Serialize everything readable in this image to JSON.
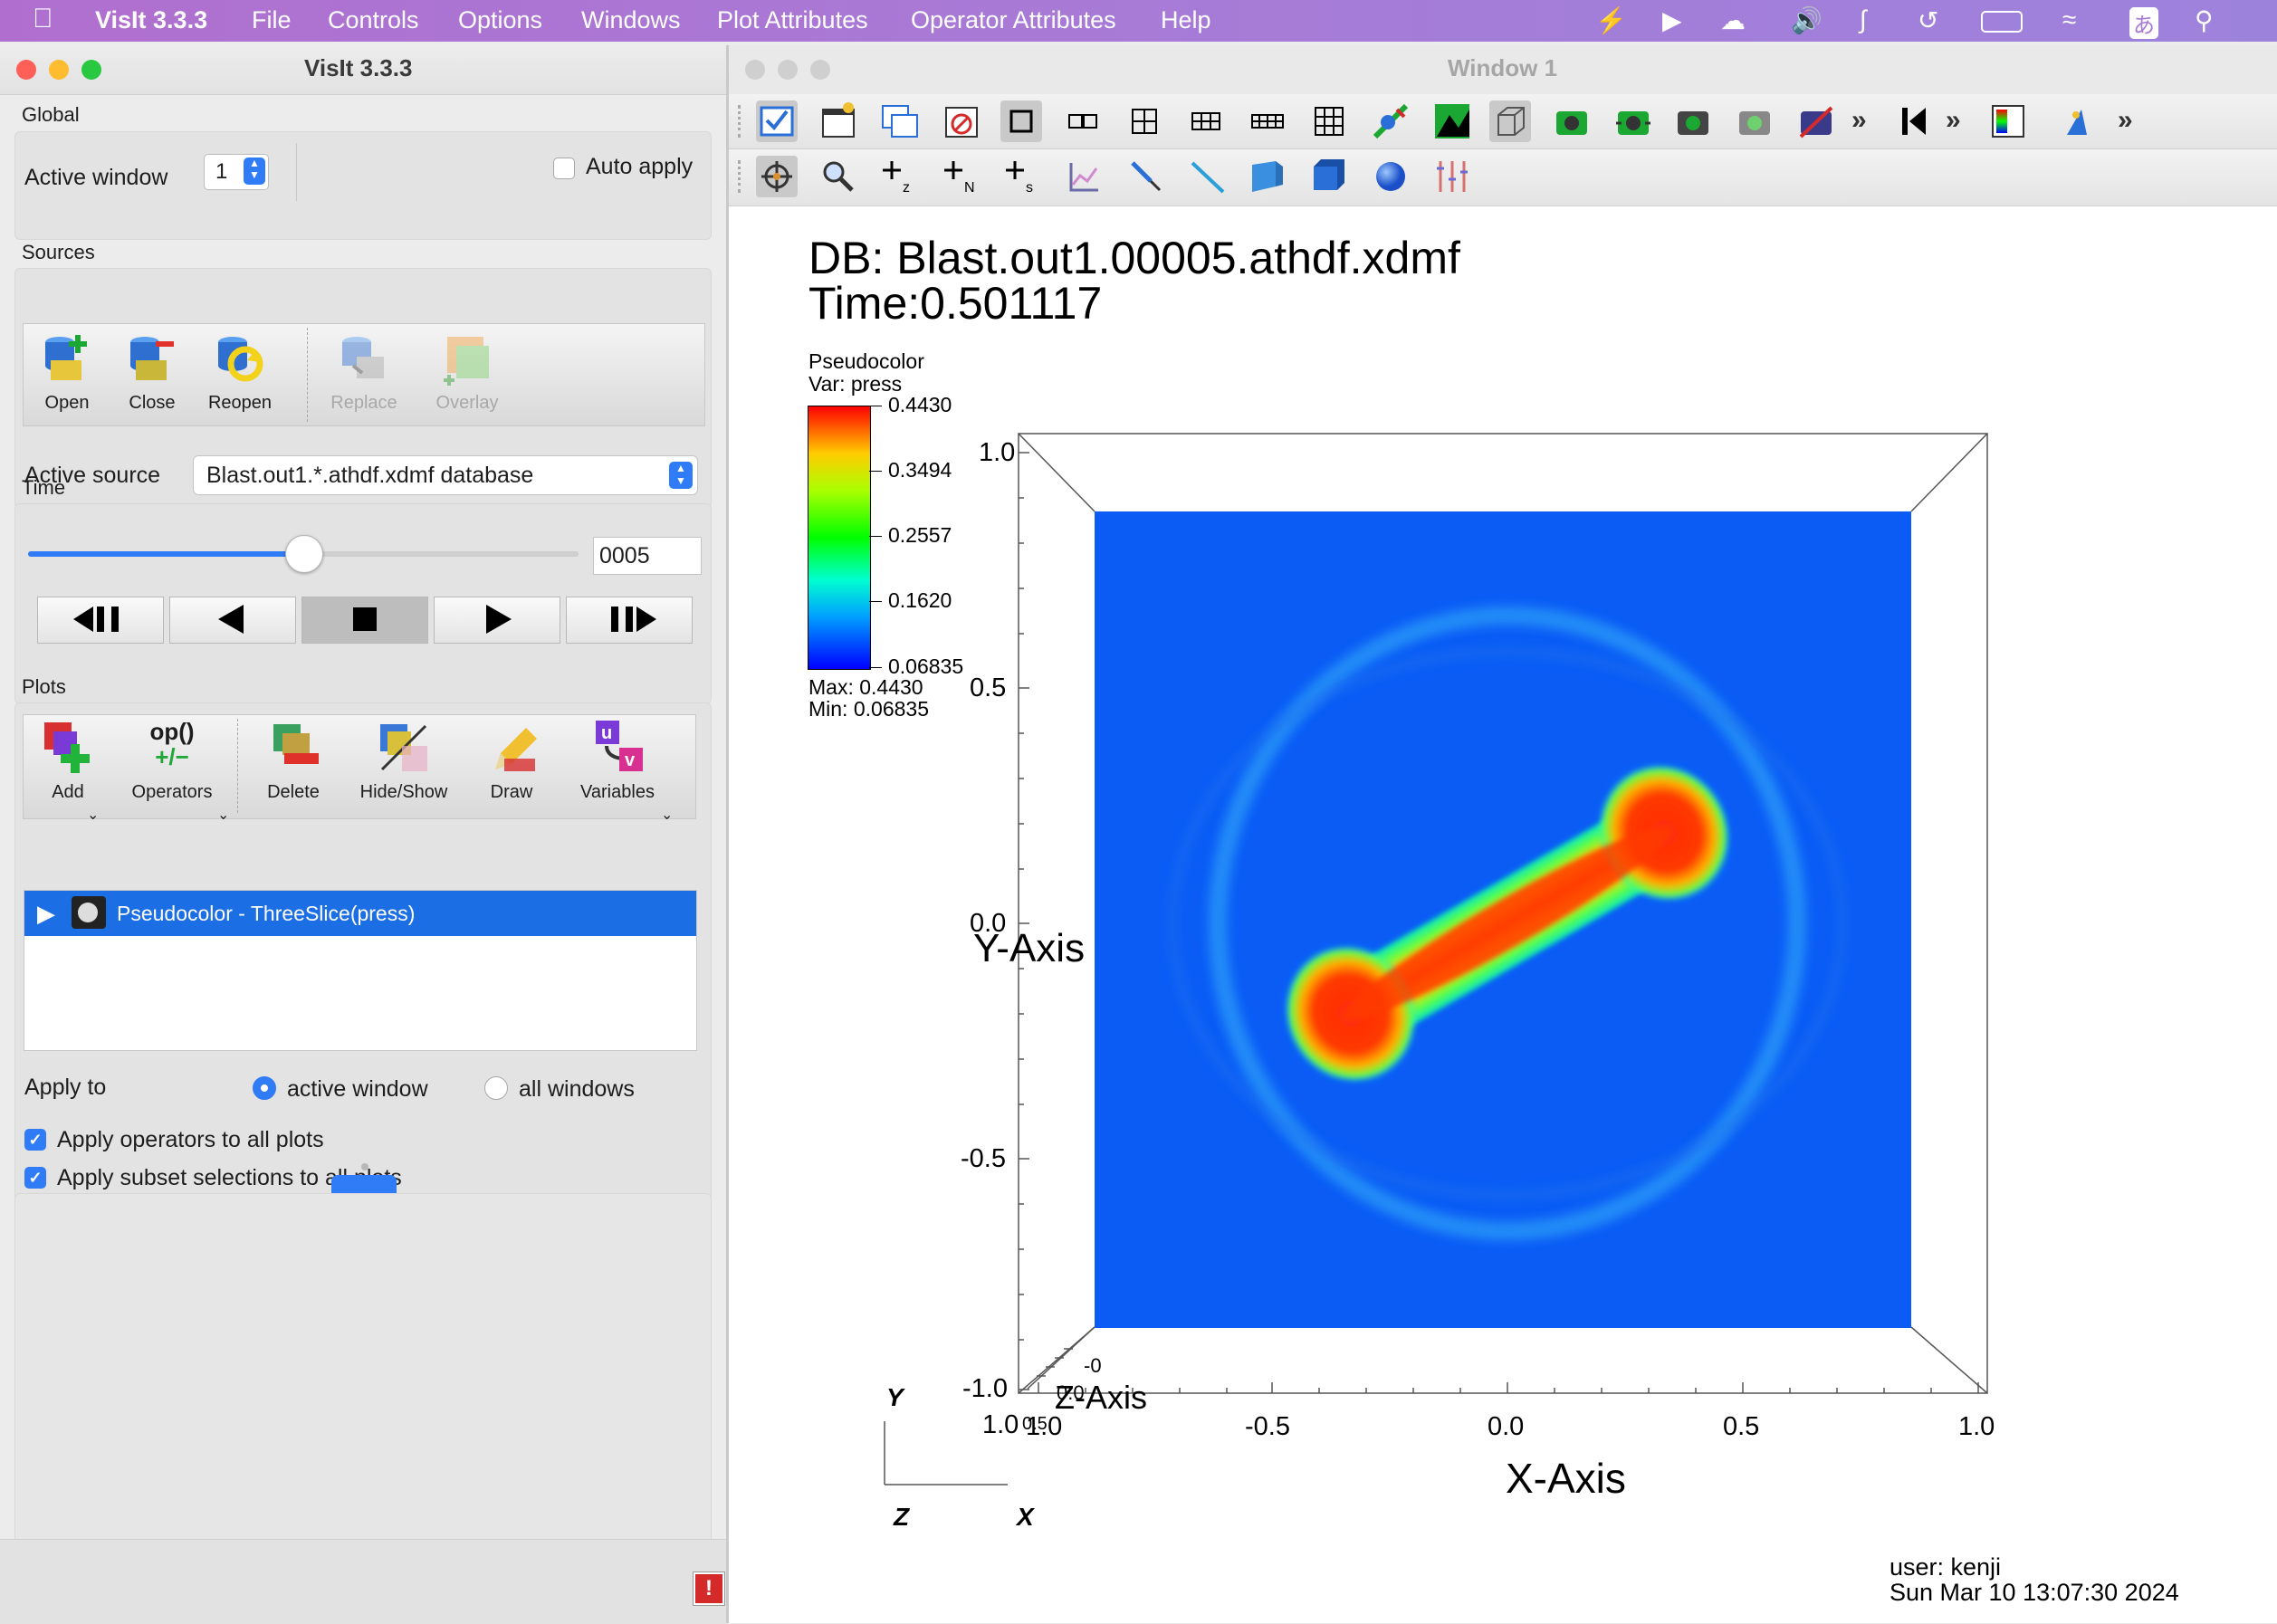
{
  "menubar": {
    "app_name": "VisIt 3.3.3",
    "items": [
      "File",
      "Controls",
      "Options",
      "Windows",
      "Plot Attributes",
      "Operator Attributes",
      "Help"
    ],
    "status_icons": [
      "cat-icon",
      "play-circle-icon",
      "cloud-icon",
      "volume-icon",
      "bluetooth-icon",
      "time-machine-icon",
      "battery-icon",
      "wifi-icon",
      "input-method-icon",
      "spotlight-icon"
    ],
    "input_method_glyph": "あ"
  },
  "control_window": {
    "title": "VisIt 3.3.3",
    "global": {
      "label": "Global",
      "active_window_label": "Active window",
      "active_window_value": "1",
      "auto_apply_label": "Auto apply",
      "auto_apply_checked": false
    },
    "sources": {
      "label": "Sources",
      "buttons": {
        "open": "Open",
        "close": "Close",
        "reopen": "Reopen",
        "replace": "Replace",
        "overlay": "Overlay"
      },
      "active_source_label": "Active source",
      "active_source_value": "Blast.out1.*.athdf.xdmf database"
    },
    "time": {
      "label": "Time",
      "slider_fraction": 0.5,
      "state_value": "0005"
    },
    "plots": {
      "label": "Plots",
      "buttons": {
        "add": "Add",
        "operators": "Operators",
        "delete": "Delete",
        "hide_show": "Hide/Show",
        "draw": "Draw",
        "variables": "Variables"
      },
      "operators_icon_text": "op()",
      "operators_icon_text2": "+/−",
      "list": [
        {
          "label": "Pseudocolor - ThreeSlice(press)",
          "selected": true
        }
      ],
      "apply_to_label": "Apply to",
      "apply_active_window": "active window",
      "apply_all_windows": "all windows",
      "apply_operators_label": "Apply operators to all plots",
      "apply_subset_label": "Apply subset selections to all plots"
    }
  },
  "viewer_window": {
    "title": "Window 1",
    "plot": {
      "db_line": "DB: Blast.out1.00005.athdf.xdmf",
      "time_line": "Time:0.501117",
      "legend_title": "Pseudocolor",
      "legend_var": "Var: press",
      "legend_ticks": [
        "0.4430",
        "0.3494",
        "0.2557",
        "0.1620",
        "0.06835"
      ],
      "legend_max": "Max:  0.4430",
      "legend_min": "Min:  0.06835",
      "y_ticks": [
        "1.0",
        "0.5",
        "0.0",
        "-0.5",
        "-1.0"
      ],
      "x_ticks": [
        "1.0",
        "1.0",
        "-0.5",
        "0.0",
        "0.5",
        "1.0"
      ],
      "x_axis_label": "X-Axis",
      "y_axis_label": "Y-Axis",
      "z_axis_label": "Z-Axis",
      "z_tick_a": "-0",
      "z_tick_b": "0.0",
      "z_tick_c": "0.5",
      "triad_y": "Y",
      "triad_z": "Z",
      "triad_x": "X",
      "user_line": "user: kenji",
      "date_line": "Sun Mar 10 13:07:30 2024",
      "colors": {
        "background_field": "#0a5cf5",
        "hot": "#ff2a0a",
        "mid": "#ffd000",
        "cool": "#00ff60"
      }
    }
  }
}
